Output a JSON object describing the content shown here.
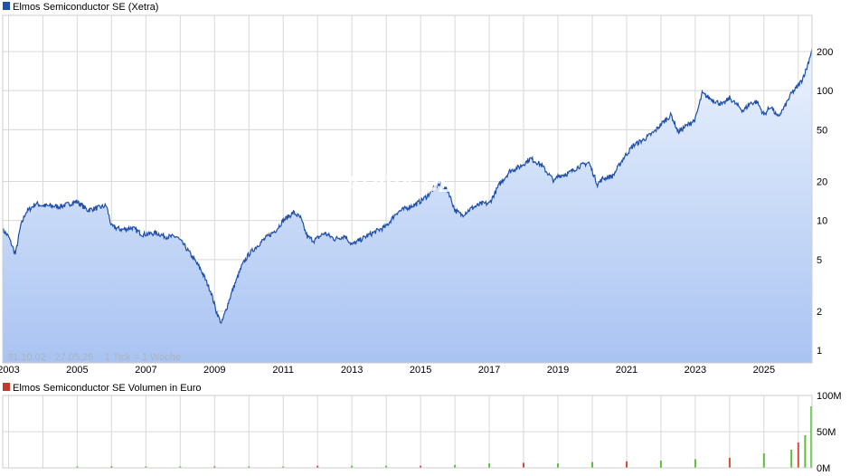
{
  "colors": {
    "price_line": "#1f4fa8",
    "area_top": "#eaf2fd",
    "area_bottom": "#a9c3f2",
    "grid": "#d8d8d8",
    "vol_green": "#5bbf3a",
    "vol_red": "#d94a3a",
    "legend_price": "#1f4fa8",
    "legend_volume": "#c0392b"
  },
  "header": {
    "price_title": "Elmos Semiconductor SE (Xetra)",
    "volume_title": "Elmos Semiconductor SE Volumen in Euro",
    "range_note": "31.10.02 - 27.05.26    1 Tick = 1 Woche",
    "watermark": "ARIVA.DE"
  },
  "chart_data": [
    {
      "type": "line",
      "scale": "log",
      "title": "Elmos Semiconductor SE (Xetra)",
      "xlim": [
        2002.83,
        2026.4
      ],
      "ylim": [
        0.8,
        380
      ],
      "x_ticks": [
        "2003",
        "2005",
        "2007",
        "2009",
        "2011",
        "2013",
        "2015",
        "2017",
        "2019",
        "2021",
        "2023",
        "2025"
      ],
      "y_ticks": [
        "1",
        "2",
        "5",
        "10",
        "20",
        "50",
        "100",
        "200"
      ],
      "y_tick_values": [
        1,
        2,
        5,
        10,
        20,
        50,
        100,
        200
      ],
      "grid": true,
      "series": [
        {
          "name": "Elmos Semiconductor SE (Xetra)",
          "x": [
            2002.83,
            2003.0,
            2003.2,
            2003.35,
            2003.5,
            2003.8,
            2004.0,
            2004.5,
            2005.0,
            2005.3,
            2005.6,
            2005.85,
            2006.0,
            2006.3,
            2006.6,
            2006.9,
            2007.3,
            2007.6,
            2007.9,
            2008.1,
            2008.3,
            2008.6,
            2008.9,
            2009.05,
            2009.2,
            2009.5,
            2009.8,
            2010.0,
            2010.4,
            2010.8,
            2011.0,
            2011.3,
            2011.5,
            2011.7,
            2011.9,
            2012.2,
            2012.5,
            2012.8,
            2013.0,
            2013.4,
            2013.8,
            2014.0,
            2014.3,
            2014.6,
            2014.9,
            2015.2,
            2015.5,
            2015.8,
            2016.0,
            2016.2,
            2016.5,
            2016.8,
            2017.0,
            2017.3,
            2017.6,
            2017.9,
            2018.2,
            2018.5,
            2018.9,
            2019.0,
            2019.3,
            2019.6,
            2019.9,
            2020.15,
            2020.3,
            2020.6,
            2020.9,
            2021.2,
            2021.5,
            2021.8,
            2022.0,
            2022.3,
            2022.5,
            2022.8,
            2023.0,
            2023.2,
            2023.5,
            2023.8,
            2024.0,
            2024.2,
            2024.4,
            2024.6,
            2024.8,
            2025.0,
            2025.2,
            2025.4,
            2025.6,
            2025.8,
            2025.95,
            2026.1,
            2026.25,
            2026.4
          ],
          "y": [
            8.5,
            7.5,
            5.5,
            9.0,
            11.5,
            13.5,
            13.0,
            12.8,
            14.0,
            12.0,
            12.5,
            13.0,
            9.0,
            8.5,
            8.8,
            7.8,
            8.0,
            7.5,
            7.5,
            6.5,
            5.5,
            4.2,
            2.8,
            2.0,
            1.6,
            2.8,
            4.5,
            5.5,
            7.0,
            8.5,
            10.0,
            11.5,
            10.5,
            7.5,
            7.0,
            8.0,
            7.2,
            7.6,
            6.5,
            7.5,
            8.5,
            9.0,
            11.5,
            12.5,
            13.5,
            15.5,
            19.0,
            17.0,
            12.0,
            11.0,
            12.5,
            13.5,
            13.5,
            19.0,
            24.0,
            26.0,
            30.0,
            27.0,
            20.0,
            22.0,
            23.0,
            26.0,
            28.0,
            19.0,
            21.0,
            22.0,
            30.0,
            38.0,
            42.0,
            48.0,
            55.0,
            65.0,
            48.0,
            55.0,
            60.0,
            95.0,
            85.0,
            78.0,
            88.0,
            78.0,
            70.0,
            80.0,
            82.0,
            65.0,
            76.0,
            62.0,
            75.0,
            95.0,
            105.0,
            120.0,
            150.0,
            210.0
          ]
        }
      ]
    },
    {
      "type": "bar",
      "title": "Elmos Semiconductor SE Volumen in Euro",
      "xlim": [
        2002.83,
        2026.4
      ],
      "ylim": [
        0,
        100
      ],
      "y_ticks": [
        "0M",
        "50M",
        "100M"
      ],
      "y_tick_values": [
        0,
        50,
        100
      ],
      "grid": true,
      "series": [
        {
          "name": "Elmos Semiconductor SE Volumen in Euro",
          "x": [
            2005.0,
            2006.0,
            2007.0,
            2008.0,
            2009.0,
            2010.0,
            2011.0,
            2012.0,
            2013.0,
            2014.0,
            2015.0,
            2016.0,
            2017.0,
            2018.0,
            2019.0,
            2020.0,
            2021.0,
            2022.0,
            2023.0,
            2024.0,
            2025.0,
            2025.8,
            2026.0,
            2026.2,
            2026.38
          ],
          "y": [
            2,
            2,
            2,
            2,
            2,
            2,
            2,
            3,
            3,
            3,
            3,
            4,
            6,
            7,
            6,
            8,
            9,
            10,
            12,
            14,
            20,
            25,
            35,
            45,
            85
          ]
        }
      ]
    }
  ]
}
